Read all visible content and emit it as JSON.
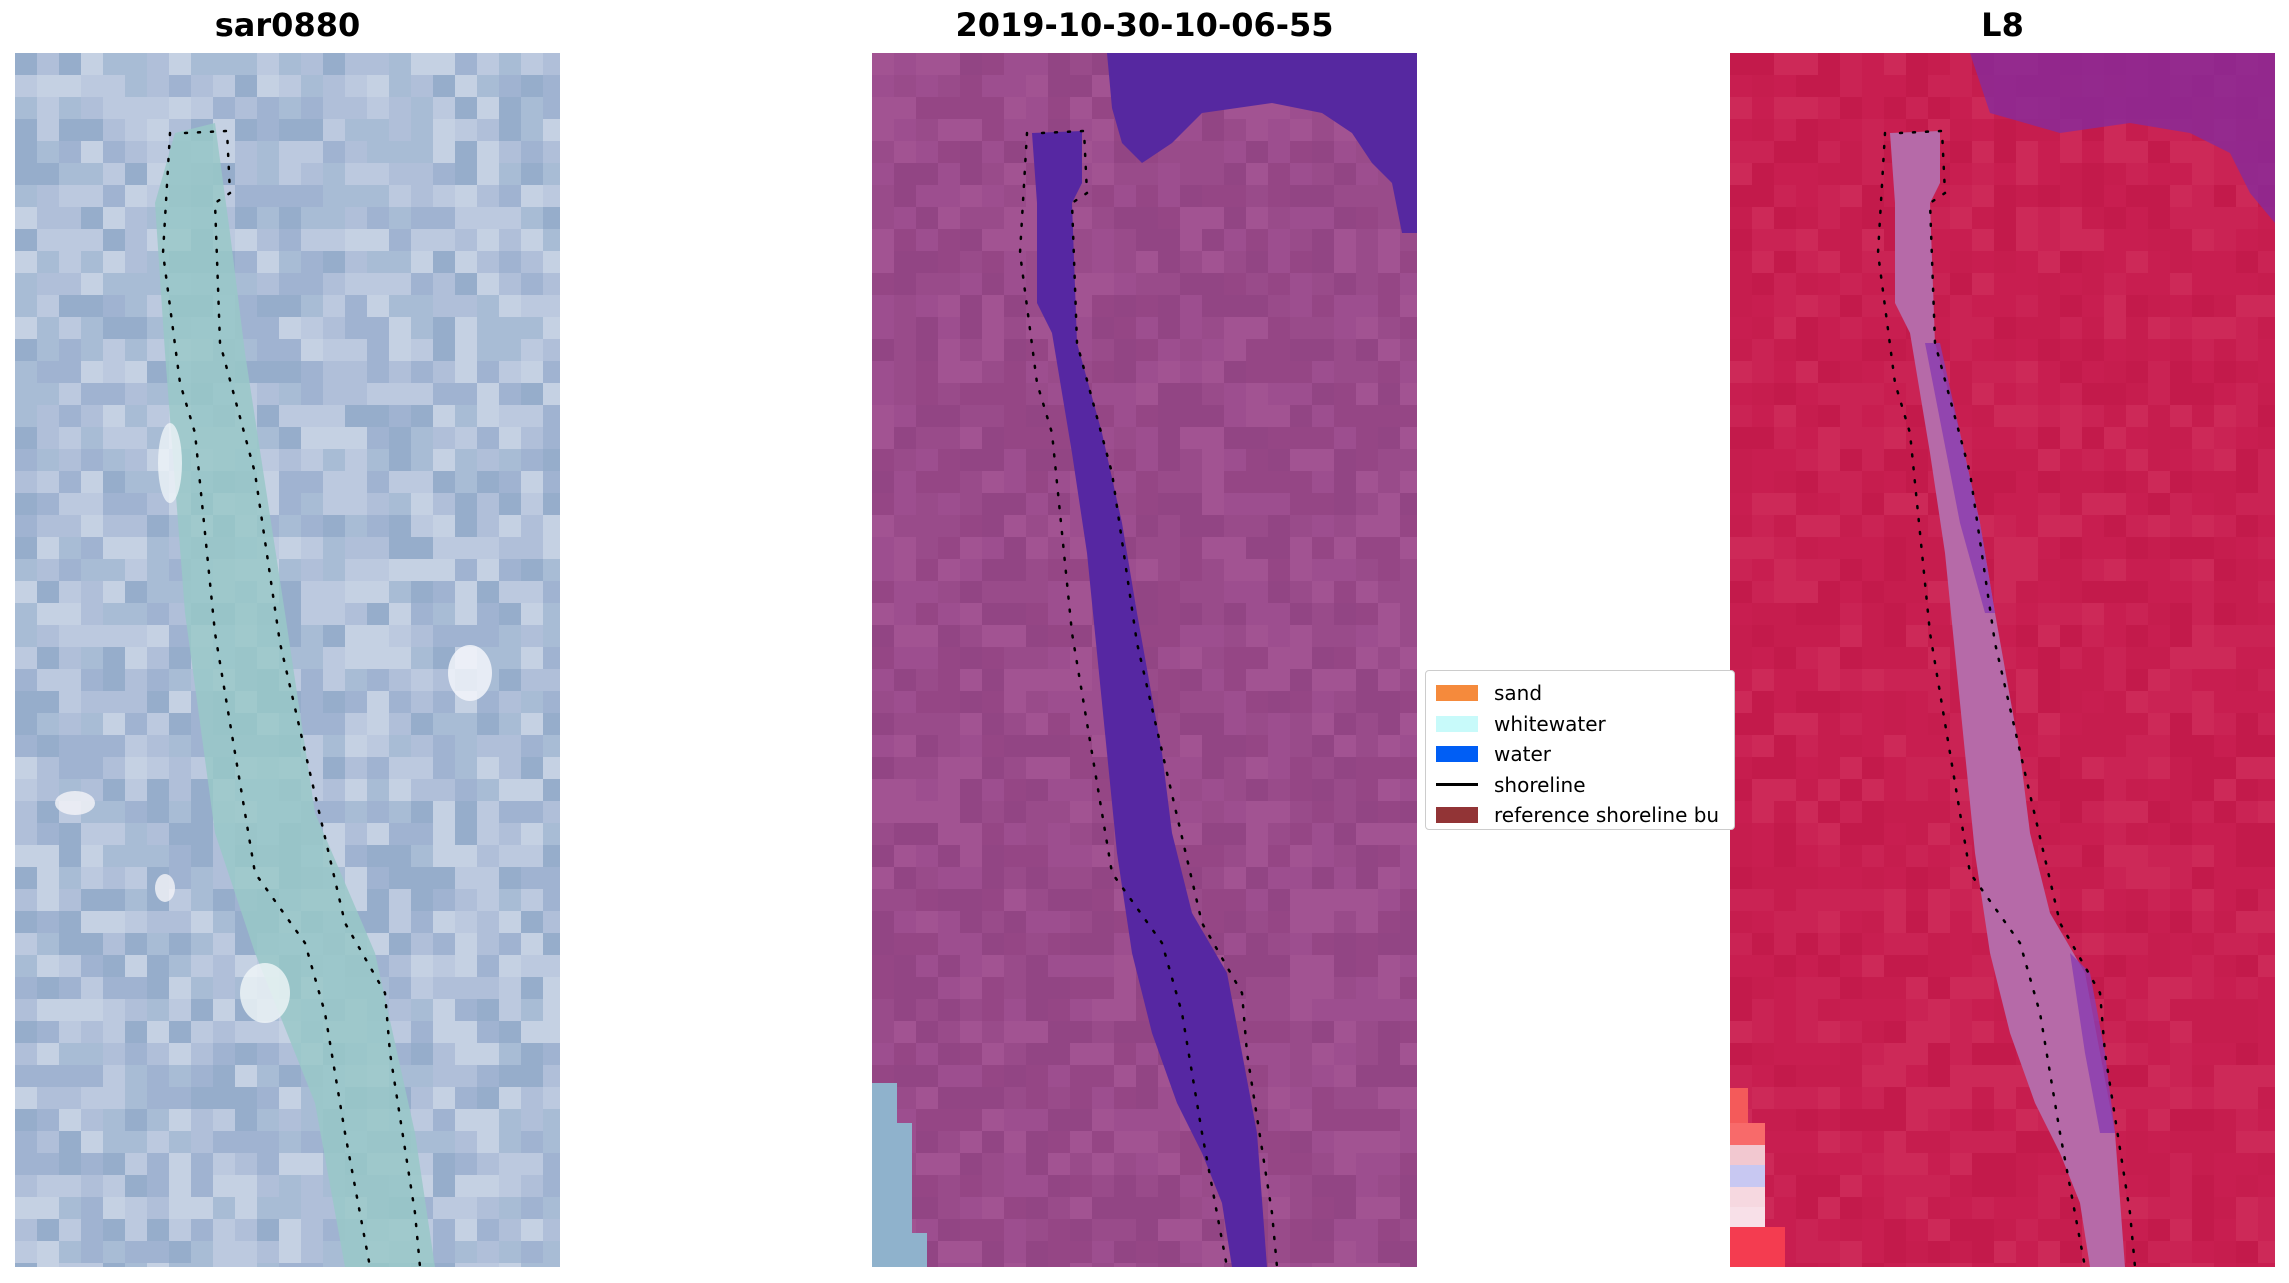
{
  "panels": [
    {
      "title": "sar0880",
      "kind": "rgb"
    },
    {
      "title": "2019-10-30-10-06-55",
      "kind": "classified"
    },
    {
      "title": "L8",
      "kind": "index"
    }
  ],
  "legend": {
    "items": [
      {
        "label": "sand",
        "type": "patch",
        "color": "#f58a3c"
      },
      {
        "label": "whitewater",
        "type": "patch",
        "color": "#c8fafa"
      },
      {
        "label": "water",
        "type": "patch",
        "color": "#005ef5"
      },
      {
        "label": "shoreline",
        "type": "line",
        "color": "#000000"
      },
      {
        "label": "reference shoreline bu",
        "type": "patch",
        "color": "#923436"
      }
    ]
  },
  "colors": {
    "rgb_base": "#a6b4d2",
    "rgb_channel": "#98c6c8",
    "classified_land": "#9a4a8a",
    "classified_water": "#5626a0",
    "index_land": "#c81e50",
    "index_channel": "#b46ea8",
    "shoreline_dots": "#000000"
  }
}
